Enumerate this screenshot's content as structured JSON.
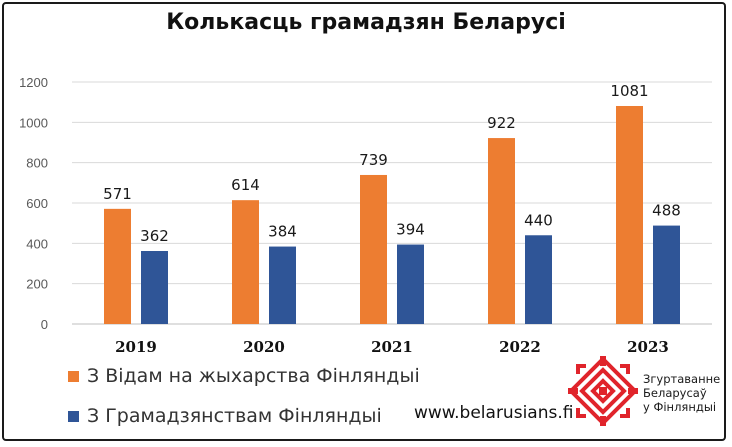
{
  "chart_data": {
    "type": "bar",
    "title": "Колькасць грамадзян Беларусі",
    "categories": [
      "2019",
      "2020",
      "2021",
      "2022",
      "2023"
    ],
    "series": [
      {
        "name": "З Відам на жыхарства Фінляндыі",
        "color": "#ED7D31",
        "values": [
          571,
          614,
          739,
          922,
          1081
        ]
      },
      {
        "name": "З Грамадзянствам Фінляндыі",
        "color": "#2F5597",
        "values": [
          362,
          384,
          394,
          440,
          488
        ]
      }
    ],
    "y_ticks": [
      "0",
      "200",
      "400",
      "600",
      "800",
      "1000",
      "1200"
    ],
    "ylim": [
      0,
      1200
    ],
    "grid": true,
    "legend_position": "bottom-left"
  },
  "footer": {
    "website": "www.belarusians.fi",
    "org_name_lines": [
      "Згуртаванне",
      "Беларусаў",
      "у Фінляндыі"
    ],
    "logo_color": "#E0242B",
    "logo_icon": "belarusian-ornament-icon"
  }
}
